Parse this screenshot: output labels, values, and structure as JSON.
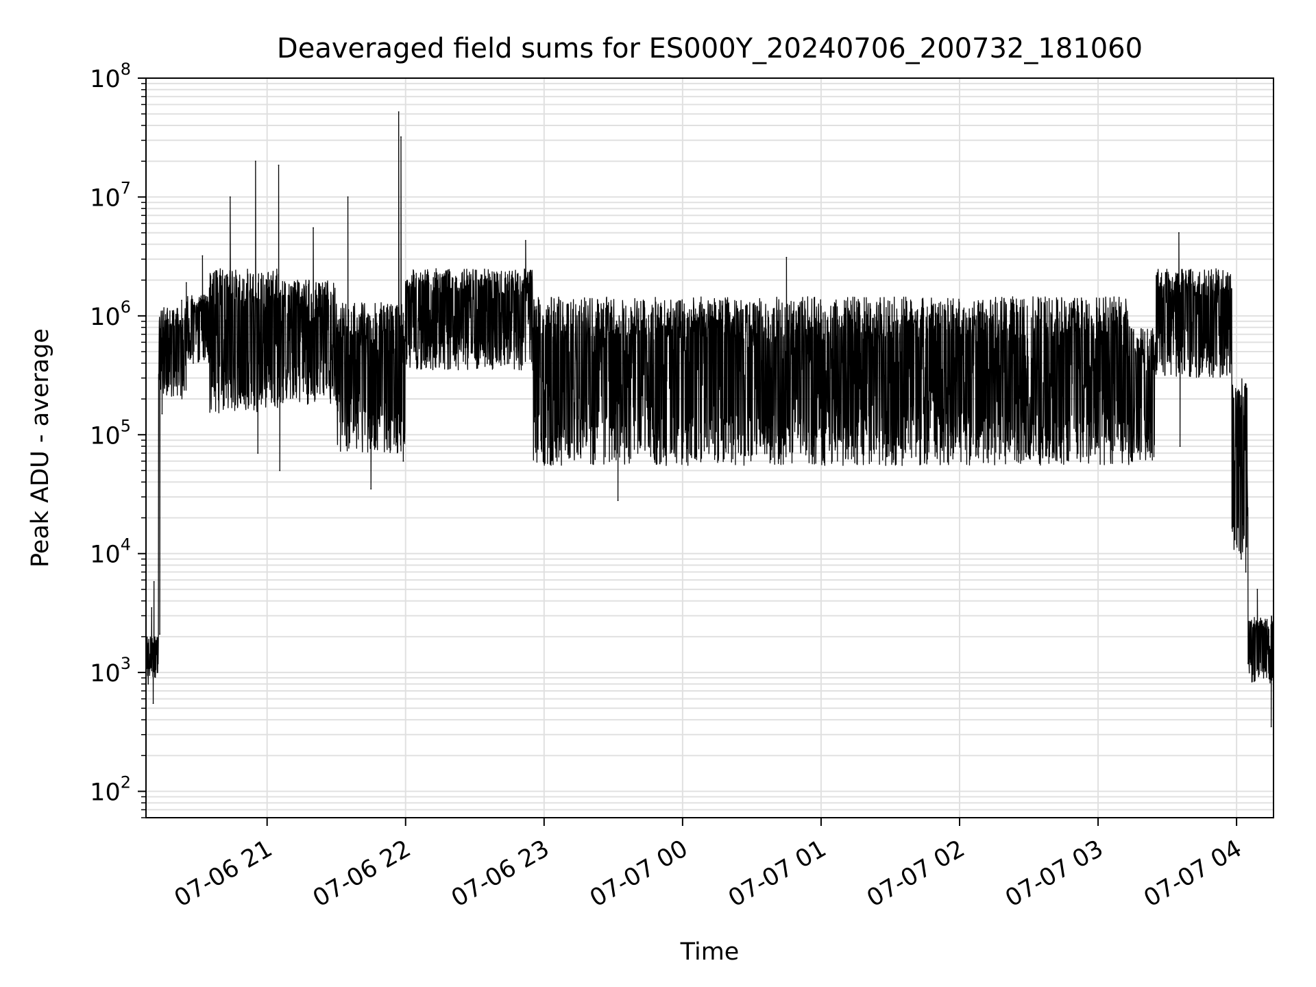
{
  "chart_data": {
    "type": "line",
    "title": "Deaveraged field sums for ES000Y_20240706_200732_181060",
    "xlabel": "Time",
    "ylabel": "Peak ADU - average",
    "yscale": "log",
    "ylim": [
      60,
      100000000
    ],
    "xlim": [
      "2024-07-06 20:07:32",
      "2024-07-07 04:16:00"
    ],
    "grid": true,
    "line_color": "#000000",
    "grid_color": "#e0e0e0",
    "x_ticks": [
      {
        "value": "2024-07-06 21:00",
        "label": "07-06 21"
      },
      {
        "value": "2024-07-06 22:00",
        "label": "07-06 22"
      },
      {
        "value": "2024-07-06 23:00",
        "label": "07-06 23"
      },
      {
        "value": "2024-07-07 00:00",
        "label": "07-07 00"
      },
      {
        "value": "2024-07-07 01:00",
        "label": "07-07 01"
      },
      {
        "value": "2024-07-07 02:00",
        "label": "07-07 02"
      },
      {
        "value": "2024-07-07 03:00",
        "label": "07-07 03"
      },
      {
        "value": "2024-07-07 04:00",
        "label": "07-07 04"
      }
    ],
    "y_ticks": [
      {
        "value": 100,
        "base": "10",
        "exp": "2"
      },
      {
        "value": 1000,
        "base": "10",
        "exp": "3"
      },
      {
        "value": 10000,
        "base": "10",
        "exp": "4"
      },
      {
        "value": 100000,
        "base": "10",
        "exp": "5"
      },
      {
        "value": 1000000,
        "base": "10",
        "exp": "6"
      },
      {
        "value": 10000000,
        "base": "10",
        "exp": "7"
      },
      {
        "value": 100000000,
        "base": "10",
        "exp": "8"
      }
    ],
    "series": [
      {
        "style": "dense line, rapid oscillation between high and low envelopes",
        "segments": [
          {
            "start": "2024-07-06 20:07:32",
            "end": "2024-07-06 20:13",
            "high": 2000,
            "low": 900
          },
          {
            "start": "2024-07-06 20:13",
            "end": "2024-07-06 20:25",
            "high": 1200000,
            "low": 200000
          },
          {
            "start": "2024-07-06 20:25",
            "end": "2024-07-06 20:35",
            "high": 1500000,
            "low": 400000
          },
          {
            "start": "2024-07-06 20:35",
            "end": "2024-07-06 21:05",
            "high": 2500000,
            "low": 150000
          },
          {
            "start": "2024-07-06 21:05",
            "end": "2024-07-06 21:30",
            "high": 2000000,
            "low": 180000
          },
          {
            "start": "2024-07-06 21:30",
            "end": "2024-07-06 22:00",
            "high": 1300000,
            "low": 70000
          },
          {
            "start": "2024-07-06 22:00",
            "end": "2024-07-06 22:55",
            "high": 2500000,
            "low": 350000
          },
          {
            "start": "2024-07-06 22:55",
            "end": "2024-07-07 03:15",
            "high": 1450000,
            "low": 55000
          },
          {
            "start": "2024-07-07 03:15",
            "end": "2024-07-07 03:25",
            "high": 800000,
            "low": 60000
          },
          {
            "start": "2024-07-07 03:25",
            "end": "2024-07-07 03:58",
            "high": 2500000,
            "low": 300000
          },
          {
            "start": "2024-07-07 03:58",
            "end": "2024-07-07 04:05",
            "high": 300000,
            "low": 10000
          },
          {
            "start": "2024-07-07 04:05",
            "end": "2024-07-07 04:16",
            "high": 3000,
            "low": 800
          }
        ],
        "points": [
          {
            "x": "2024-07-06 20:07:32",
            "y": 2000
          },
          {
            "x": "2024-07-06 20:08:30",
            "y": 800
          },
          {
            "x": "2024-07-06 20:10:00",
            "y": 3500
          },
          {
            "x": "2024-07-06 20:10:40",
            "y": 550
          },
          {
            "x": "2024-07-06 20:11:00",
            "y": 5800
          },
          {
            "x": "2024-07-06 20:12:30",
            "y": 1600
          },
          {
            "x": "2024-07-06 20:13:30",
            "y": 2100
          },
          {
            "x": "2024-07-06 20:14:30",
            "y": 150000
          },
          {
            "x": "2024-07-06 20:16:30",
            "y": 700000
          },
          {
            "x": "2024-07-06 20:19:00",
            "y": 1100000
          },
          {
            "x": "2024-07-06 20:23:00",
            "y": 1350000
          },
          {
            "x": "2024-07-06 20:25:00",
            "y": 1900000
          },
          {
            "x": "2024-07-06 20:28:00",
            "y": 400000
          },
          {
            "x": "2024-07-06 20:32:00",
            "y": 3200000
          },
          {
            "x": "2024-07-06 20:44:00",
            "y": 10000000
          },
          {
            "x": "2024-07-06 20:55:00",
            "y": 20000000
          },
          {
            "x": "2024-07-06 20:56:00",
            "y": 70000
          },
          {
            "x": "2024-07-06 21:05:00",
            "y": 18500000
          },
          {
            "x": "2024-07-06 21:05:30",
            "y": 50000
          },
          {
            "x": "2024-07-06 21:20:00",
            "y": 5500000
          },
          {
            "x": "2024-07-06 21:35:00",
            "y": 10000000
          },
          {
            "x": "2024-07-06 21:45:00",
            "y": 35000
          },
          {
            "x": "2024-07-06 21:57:00",
            "y": 52000000
          },
          {
            "x": "2024-07-06 21:58:00",
            "y": 32000000
          },
          {
            "x": "2024-07-06 21:59:00",
            "y": 60000
          },
          {
            "x": "2024-07-06 22:52:00",
            "y": 4300000
          },
          {
            "x": "2024-07-06 23:32:00",
            "y": 28000
          },
          {
            "x": "2024-07-07 00:45:00",
            "y": 3100000
          },
          {
            "x": "2024-07-07 03:35:00",
            "y": 5000000
          },
          {
            "x": "2024-07-07 03:35:30",
            "y": 80000
          },
          {
            "x": "2024-07-07 04:02:00",
            "y": 9000
          },
          {
            "x": "2024-07-07 04:03:00",
            "y": 45000
          },
          {
            "x": "2024-07-07 04:04:00",
            "y": 7000
          },
          {
            "x": "2024-07-07 04:05:00",
            "y": 1200
          },
          {
            "x": "2024-07-07 04:09:00",
            "y": 5000
          },
          {
            "x": "2024-07-07 04:15:00",
            "y": 350
          }
        ]
      }
    ]
  }
}
